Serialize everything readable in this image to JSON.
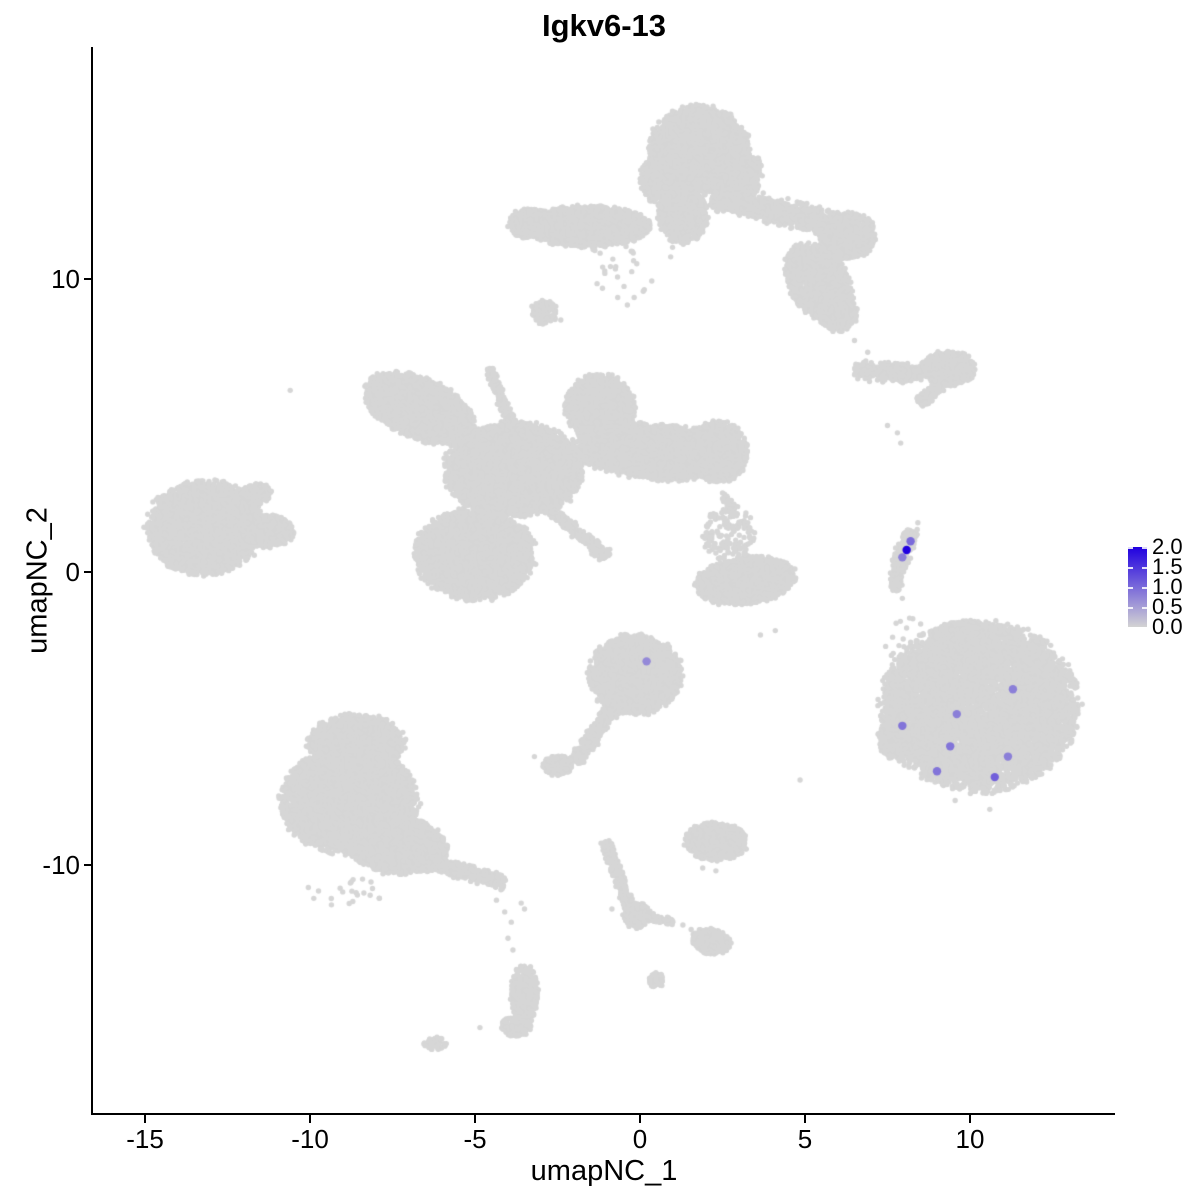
{
  "title": "Igkv6-13",
  "axes": {
    "x": {
      "label": "umapNC_1",
      "ticks": [
        {
          "value": -15,
          "label": "-15"
        },
        {
          "value": -10,
          "label": "-10"
        },
        {
          "value": -5,
          "label": "-5"
        },
        {
          "value": 0,
          "label": "0"
        },
        {
          "value": 5,
          "label": "5"
        },
        {
          "value": 10,
          "label": "10"
        }
      ]
    },
    "y": {
      "label": "umapNC_2",
      "ticks": [
        {
          "value": 10,
          "label": "10"
        },
        {
          "value": 0,
          "label": "0"
        },
        {
          "value": -10,
          "label": "-10"
        }
      ]
    }
  },
  "legend": {
    "vmin": 0.0,
    "vmax": 2.0,
    "ticks": [
      {
        "value": 2.0,
        "label": "2.0"
      },
      {
        "value": 1.5,
        "label": "1.5"
      },
      {
        "value": 1.0,
        "label": "1.0"
      },
      {
        "value": 0.5,
        "label": "0.5"
      },
      {
        "value": 0.0,
        "label": "0.0"
      }
    ],
    "low_color": "#D3D3D3",
    "high_color": "#2000E0"
  },
  "colors": {
    "background": "#FFFFFF",
    "nonexpressing_point": "#D6D6D6",
    "axis": "#000000",
    "text": "#000000"
  },
  "chart_data": {
    "type": "scatter",
    "title": "Igkv6-13",
    "xlabel": "umapNC_1",
    "ylabel": "umapNC_2",
    "xlim": [
      -16.6,
      14.4
    ],
    "ylim": [
      -18.5,
      17.9
    ],
    "grid": false,
    "legend_position": "right",
    "point_value_range": [
      0.0,
      2.0
    ],
    "background_clusters": [
      {
        "kind": "ellipse",
        "cx": 1.8,
        "cy": 14.4,
        "rx": 1.5,
        "ry": 1.5,
        "rot": 0,
        "n": 3200
      },
      {
        "kind": "ellipse",
        "cx": 0.9,
        "cy": 13.4,
        "rx": 0.9,
        "ry": 1.0,
        "rot": 0,
        "n": 800
      },
      {
        "kind": "ellipse",
        "cx": 2.8,
        "cy": 13.6,
        "rx": 0.9,
        "ry": 0.9,
        "rot": 0,
        "n": 700
      },
      {
        "kind": "ellipse",
        "cx": 1.3,
        "cy": 12.2,
        "rx": 0.75,
        "ry": 1.0,
        "rot": 0,
        "n": 900
      },
      {
        "kind": "ellipse",
        "cx": -1.6,
        "cy": 11.8,
        "rx": 1.9,
        "ry": 0.7,
        "rot": 0,
        "n": 1800
      },
      {
        "kind": "ellipse",
        "cx": -3.3,
        "cy": 11.9,
        "rx": 0.7,
        "ry": 0.5,
        "rot": 0,
        "n": 500
      },
      {
        "kind": "ellipse",
        "cx": -2.9,
        "cy": 8.9,
        "rx": 0.4,
        "ry": 0.45,
        "rot": 0,
        "n": 110
      },
      {
        "kind": "strand",
        "x1": 2.2,
        "y1": 12.8,
        "x2": 6.2,
        "y2": 11.8,
        "th": 0.55,
        "n": 1600
      },
      {
        "kind": "ellipse",
        "cx": 6.3,
        "cy": 11.5,
        "rx": 0.85,
        "ry": 0.8,
        "rot": 0,
        "n": 900
      },
      {
        "kind": "ellipse",
        "cx": 5.4,
        "cy": 9.9,
        "rx": 0.9,
        "ry": 1.4,
        "rot": 25,
        "n": 1500
      },
      {
        "kind": "ellipse",
        "cx": 6.0,
        "cy": 8.9,
        "rx": 0.6,
        "ry": 0.7,
        "rot": 0,
        "n": 450
      },
      {
        "kind": "ellipse",
        "cx": -0.3,
        "cy": 10.3,
        "rx": 1.6,
        "ry": 1.2,
        "rot": 0,
        "n": 30
      },
      {
        "kind": "dots",
        "pts": [
          [
            6.5,
            7.9
          ],
          [
            6.9,
            7.5
          ],
          [
            -2.4,
            8.6
          ]
        ]
      },
      {
        "kind": "strand",
        "x1": -6.5,
        "y1": 6.9,
        "x2": -4.55,
        "y2": 6.95,
        "th": 0.01,
        "n": 0
      },
      {
        "kind": "strand",
        "x1": 6.5,
        "y1": 6.9,
        "x2": 8.55,
        "y2": 6.75,
        "th": 0.4,
        "n": 450
      },
      {
        "kind": "ellipse",
        "cx": 9.35,
        "cy": 6.95,
        "rx": 0.8,
        "ry": 0.6,
        "rot": 0,
        "n": 650
      },
      {
        "kind": "strand",
        "x1": 8.45,
        "y1": 5.75,
        "x2": 9.1,
        "y2": 6.35,
        "th": 0.28,
        "n": 150
      },
      {
        "kind": "dots",
        "pts": [
          [
            7.5,
            5.0
          ],
          [
            7.8,
            4.75
          ],
          [
            7.9,
            4.4
          ]
        ]
      },
      {
        "kind": "ellipse",
        "cx": -6.7,
        "cy": 5.6,
        "rx": 1.75,
        "ry": 1.0,
        "rot": -28,
        "n": 2600
      },
      {
        "kind": "strand",
        "x1": -4.55,
        "y1": 6.95,
        "x2": -3.9,
        "y2": 5.05,
        "th": 0.22,
        "n": 200
      },
      {
        "kind": "ellipse",
        "cx": -3.8,
        "cy": 3.5,
        "rx": 2.1,
        "ry": 1.6,
        "rot": 0,
        "n": 4200
      },
      {
        "kind": "ellipse",
        "cx": -1.2,
        "cy": 5.6,
        "rx": 1.05,
        "ry": 1.15,
        "rot": 0,
        "n": 1400
      },
      {
        "kind": "ellipse",
        "cx": 0.5,
        "cy": 4.1,
        "rx": 2.5,
        "ry": 0.95,
        "rot": -5,
        "n": 2800
      },
      {
        "kind": "ellipse",
        "cx": 2.35,
        "cy": 4.1,
        "rx": 0.9,
        "ry": 1.05,
        "rot": 0,
        "n": 1100
      },
      {
        "kind": "strand",
        "x1": 2.5,
        "y1": 2.7,
        "x2": 3.2,
        "y2": 1.5,
        "th": 0.2,
        "n": 45
      },
      {
        "kind": "ellipse",
        "cx": -5.0,
        "cy": 0.6,
        "rx": 1.8,
        "ry": 1.55,
        "rot": 0,
        "n": 3400
      },
      {
        "kind": "strand",
        "x1": -2.9,
        "y1": 2.3,
        "x2": -1.0,
        "y2": 0.5,
        "th": 0.28,
        "n": 320
      },
      {
        "kind": "ellipse",
        "cx": -13.2,
        "cy": 1.5,
        "rx": 1.75,
        "ry": 1.6,
        "rot": 0,
        "n": 3000
      },
      {
        "kind": "ellipse",
        "cx": -11.3,
        "cy": 1.4,
        "rx": 0.8,
        "ry": 0.55,
        "rot": 0,
        "n": 550
      },
      {
        "kind": "ellipse",
        "cx": -11.7,
        "cy": 2.6,
        "rx": 0.55,
        "ry": 0.4,
        "rot": 30,
        "n": 280
      },
      {
        "kind": "dots",
        "pts": [
          [
            -10.6,
            6.2
          ]
        ]
      },
      {
        "kind": "ellipse",
        "cx": 3.2,
        "cy": -0.3,
        "rx": 1.5,
        "ry": 0.8,
        "rot": 8,
        "n": 2000
      },
      {
        "kind": "ellipse",
        "cx": 2.7,
        "cy": 1.3,
        "rx": 0.8,
        "ry": 0.95,
        "rot": 0,
        "n": 140
      },
      {
        "kind": "dots",
        "pts": [
          [
            4.1,
            -2.0
          ],
          [
            2.5,
            2.5
          ],
          [
            3.65,
            -2.15
          ]
        ]
      },
      {
        "kind": "strand",
        "x1": 8.25,
        "y1": 1.4,
        "x2": 7.85,
        "y2": 0.3,
        "th": 0.3,
        "n": 260
      },
      {
        "kind": "strand",
        "x1": 7.85,
        "y1": 0.3,
        "x2": 7.72,
        "y2": -0.65,
        "th": 0.26,
        "n": 180
      },
      {
        "kind": "dots",
        "pts": [
          [
            7.9,
            0.05
          ],
          [
            7.85,
            -0.4
          ],
          [
            7.95,
            -0.9
          ],
          [
            7.76,
            -1.75
          ],
          [
            8.0,
            -2.55
          ],
          [
            8.4,
            1.45
          ],
          [
            8.42,
            1.68
          ]
        ]
      },
      {
        "kind": "ellipse",
        "cx": 10.3,
        "cy": -4.6,
        "rx": 2.95,
        "ry": 2.85,
        "rot": 0,
        "n": 7000
      },
      {
        "kind": "ellipse",
        "cx": 9.9,
        "cy": -2.2,
        "rx": 1.05,
        "ry": 0.55,
        "rot": 0,
        "n": 450
      },
      {
        "kind": "ellipse",
        "cx": 8.3,
        "cy": -2.8,
        "rx": 0.85,
        "ry": 1.3,
        "rot": 0,
        "n": 42
      },
      {
        "kind": "ellipse",
        "cx": 7.75,
        "cy": -5.7,
        "rx": 0.55,
        "ry": 0.75,
        "rot": 0,
        "n": 380
      },
      {
        "kind": "dots",
        "pts": [
          [
            9.55,
            -7.8
          ],
          [
            10.6,
            -8.1
          ]
        ]
      },
      {
        "kind": "ellipse",
        "cx": -0.15,
        "cy": -3.5,
        "rx": 1.4,
        "ry": 1.35,
        "rot": 0,
        "n": 2600
      },
      {
        "kind": "strand",
        "x1": -0.9,
        "y1": -4.75,
        "x2": -1.95,
        "y2": -6.5,
        "th": 0.3,
        "n": 380
      },
      {
        "kind": "ellipse",
        "cx": -2.5,
        "cy": -6.6,
        "rx": 0.45,
        "ry": 0.35,
        "rot": 0,
        "n": 220
      },
      {
        "kind": "dots",
        "pts": [
          [
            -3.2,
            -6.3
          ],
          [
            4.85,
            -7.1
          ]
        ]
      },
      {
        "kind": "ellipse",
        "cx": 2.3,
        "cy": -9.2,
        "rx": 0.95,
        "ry": 0.65,
        "rot": 0,
        "n": 800
      },
      {
        "kind": "dots",
        "pts": [
          [
            1.9,
            -10.1
          ],
          [
            2.3,
            -10.2
          ]
        ]
      },
      {
        "kind": "strand",
        "x1": -1.05,
        "y1": -9.2,
        "x2": -0.35,
        "y2": -11.3,
        "th": 0.24,
        "n": 320
      },
      {
        "kind": "ellipse",
        "cx": -0.1,
        "cy": -11.7,
        "rx": 0.42,
        "ry": 0.45,
        "rot": 0,
        "n": 300
      },
      {
        "kind": "strand",
        "x1": 0.2,
        "y1": -11.75,
        "x2": 1.0,
        "y2": -11.95,
        "th": 0.16,
        "n": 90
      },
      {
        "kind": "dots",
        "pts": [
          [
            1.3,
            -12.05
          ],
          [
            1.55,
            -12.2
          ],
          [
            -0.85,
            -11.5
          ]
        ]
      },
      {
        "kind": "ellipse",
        "cx": 2.15,
        "cy": -12.6,
        "rx": 0.6,
        "ry": 0.42,
        "rot": -15,
        "n": 380
      },
      {
        "kind": "ellipse",
        "cx": 0.5,
        "cy": -13.95,
        "rx": 0.22,
        "ry": 0.28,
        "rot": 0,
        "n": 70
      },
      {
        "kind": "ellipse",
        "cx": -8.6,
        "cy": -5.8,
        "rx": 1.45,
        "ry": 0.95,
        "rot": 0,
        "n": 1700
      },
      {
        "kind": "ellipse",
        "cx": -8.8,
        "cy": -7.8,
        "rx": 2.05,
        "ry": 1.8,
        "rot": 0,
        "n": 5000
      },
      {
        "kind": "ellipse",
        "cx": -7.4,
        "cy": -9.3,
        "rx": 1.55,
        "ry": 1.0,
        "rot": -10,
        "n": 2100
      },
      {
        "kind": "strand",
        "x1": -6.4,
        "y1": -9.9,
        "x2": -4.1,
        "y2": -10.6,
        "th": 0.34,
        "n": 600
      },
      {
        "kind": "dots",
        "pts": [
          [
            -4.35,
            -11.2
          ],
          [
            -4.1,
            -11.6
          ],
          [
            -3.9,
            -11.95
          ],
          [
            -4.0,
            -12.5
          ],
          [
            -3.85,
            -12.9
          ],
          [
            -3.6,
            -11.3
          ],
          [
            -3.5,
            -11.5
          ]
        ]
      },
      {
        "kind": "ellipse",
        "cx": -3.5,
        "cy": -14.4,
        "rx": 0.42,
        "ry": 1.0,
        "rot": 0,
        "n": 420
      },
      {
        "kind": "ellipse",
        "cx": -3.75,
        "cy": -15.5,
        "rx": 0.45,
        "ry": 0.35,
        "rot": 0,
        "n": 160
      },
      {
        "kind": "ellipse",
        "cx": -6.2,
        "cy": -16.1,
        "rx": 0.35,
        "ry": 0.22,
        "rot": 0,
        "n": 60
      },
      {
        "kind": "dots",
        "pts": [
          [
            -4.85,
            -15.55
          ]
        ]
      },
      {
        "kind": "ellipse",
        "cx": -8.9,
        "cy": -10.9,
        "rx": 1.2,
        "ry": 0.5,
        "rot": 0,
        "n": 22
      }
    ],
    "expressing_cells": [
      {
        "x": 8.2,
        "y": 1.05,
        "value": 1.0
      },
      {
        "x": 8.08,
        "y": 0.75,
        "value": 2.0
      },
      {
        "x": 7.95,
        "y": 0.5,
        "value": 0.8
      },
      {
        "x": 0.2,
        "y": -3.05,
        "value": 0.7
      },
      {
        "x": 11.3,
        "y": -4.0,
        "value": 0.8
      },
      {
        "x": 9.6,
        "y": -4.85,
        "value": 0.8
      },
      {
        "x": 7.95,
        "y": -5.25,
        "value": 0.9
      },
      {
        "x": 9.4,
        "y": -5.95,
        "value": 0.9
      },
      {
        "x": 11.15,
        "y": -6.3,
        "value": 0.8
      },
      {
        "x": 9.0,
        "y": -6.8,
        "value": 0.9
      },
      {
        "x": 10.75,
        "y": -7.0,
        "value": 1.1
      }
    ]
  }
}
